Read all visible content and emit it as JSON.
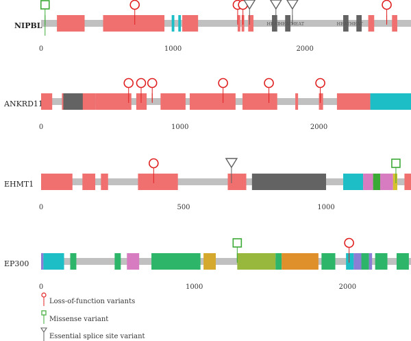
{
  "colors": {
    "backbone": "#c0c0c0",
    "lof": "#e02020",
    "missense": "#3aaa35",
    "splice": "#606060",
    "axis_text": "#333333"
  },
  "legend": [
    {
      "marker": "lof",
      "label": "Loss-of-function variants"
    },
    {
      "marker": "missense",
      "label": "Missense variant"
    },
    {
      "marker": "splice",
      "label": "Essential splice site variant"
    }
  ],
  "proteins": [
    {
      "name": "NIPBL",
      "name_bold": true,
      "length": 2804,
      "x_max": 2804,
      "ticks": [
        0,
        1000,
        2000
      ],
      "domains": [
        {
          "start": 120,
          "end": 330,
          "color": "#f07070"
        },
        {
          "start": 470,
          "end": 935,
          "color": "#f07070"
        },
        {
          "start": 990,
          "end": 1010,
          "color": "#1ebec6"
        },
        {
          "start": 1040,
          "end": 1060,
          "color": "#1ebec6"
        },
        {
          "start": 1070,
          "end": 1190,
          "color": "#f07070"
        },
        {
          "start": 1490,
          "end": 1510,
          "color": "#f07070"
        },
        {
          "start": 1520,
          "end": 1540,
          "color": "#f07070"
        },
        {
          "start": 1570,
          "end": 1610,
          "color": "#f07070"
        },
        {
          "start": 1750,
          "end": 1790,
          "color": "#636363"
        },
        {
          "start": 1850,
          "end": 1890,
          "color": "#636363"
        },
        {
          "start": 2290,
          "end": 2330,
          "color": "#636363"
        },
        {
          "start": 2390,
          "end": 2430,
          "color": "#636363"
        },
        {
          "start": 2480,
          "end": 2525,
          "color": "#f07070"
        },
        {
          "start": 2660,
          "end": 2700,
          "color": "#f07070"
        }
      ],
      "domain_labels": [
        {
          "pos": 1760,
          "text": "HEAT"
        },
        {
          "pos": 1850,
          "text": "HEAT"
        },
        {
          "pos": 1945,
          "text": "HEAT"
        },
        {
          "pos": 2290,
          "text": "HEAT"
        },
        {
          "pos": 2390,
          "text": "HEAT"
        }
      ],
      "variants": [
        {
          "pos": 30,
          "type": "missense",
          "height": "low"
        },
        {
          "pos": 710,
          "type": "lof",
          "height": "low"
        },
        {
          "pos": 1490,
          "type": "lof",
          "height": "low"
        },
        {
          "pos": 1530,
          "type": "lof",
          "height": "low"
        },
        {
          "pos": 1580,
          "type": "splice",
          "height": "low"
        },
        {
          "pos": 1780,
          "type": "splice",
          "height": "low"
        },
        {
          "pos": 1905,
          "type": "splice",
          "height": "low"
        },
        {
          "pos": 2620,
          "type": "lof",
          "height": "low"
        }
      ]
    },
    {
      "name": "ANKRD11",
      "name_bold": false,
      "length": 2663,
      "x_max": 2663,
      "ticks": [
        0,
        1000,
        2000
      ],
      "domains": [
        {
          "start": 0,
          "end": 80,
          "color": "#f07070"
        },
        {
          "start": 150,
          "end": 390,
          "color": "#f07070"
        },
        {
          "start": 160,
          "end": 300,
          "color": "#636363"
        },
        {
          "start": 390,
          "end": 650,
          "color": "#f07070"
        },
        {
          "start": 685,
          "end": 760,
          "color": "#f07070"
        },
        {
          "start": 860,
          "end": 1040,
          "color": "#f07070"
        },
        {
          "start": 1070,
          "end": 1400,
          "color": "#f07070"
        },
        {
          "start": 1450,
          "end": 1700,
          "color": "#f07070"
        },
        {
          "start": 1830,
          "end": 1850,
          "color": "#f07070"
        },
        {
          "start": 2000,
          "end": 2030,
          "color": "#f07070"
        },
        {
          "start": 2130,
          "end": 2370,
          "color": "#f07070"
        },
        {
          "start": 2370,
          "end": 2663,
          "color": "#1ebec6"
        }
      ],
      "variants": [
        {
          "pos": 630,
          "type": "lof",
          "height": "low"
        },
        {
          "pos": 720,
          "type": "lof",
          "height": "low"
        },
        {
          "pos": 800,
          "type": "lof",
          "height": "low"
        },
        {
          "pos": 1310,
          "type": "lof",
          "height": "low"
        },
        {
          "pos": 1640,
          "type": "lof",
          "height": "low"
        },
        {
          "pos": 2010,
          "type": "lof",
          "height": "low"
        }
      ]
    },
    {
      "name": "EHMT1",
      "name_bold": false,
      "length": 1298,
      "x_max": 1298,
      "ticks": [
        0,
        500,
        1000
      ],
      "domains": [
        {
          "start": 0,
          "end": 110,
          "color": "#f07070"
        },
        {
          "start": 145,
          "end": 190,
          "color": "#f07070"
        },
        {
          "start": 210,
          "end": 235,
          "color": "#f07070"
        },
        {
          "start": 340,
          "end": 480,
          "color": "#f07070"
        },
        {
          "start": 655,
          "end": 720,
          "color": "#f07070"
        },
        {
          "start": 740,
          "end": 1000,
          "color": "#636363"
        },
        {
          "start": 1060,
          "end": 1130,
          "color": "#1ebec6"
        },
        {
          "start": 1130,
          "end": 1165,
          "color": "#d77cc0"
        },
        {
          "start": 1165,
          "end": 1190,
          "color": "#3aaa35"
        },
        {
          "start": 1190,
          "end": 1235,
          "color": "#d77cc0"
        },
        {
          "start": 1235,
          "end": 1250,
          "color": "#d7c02e"
        },
        {
          "start": 1275,
          "end": 1298,
          "color": "#f07070"
        }
      ],
      "variants": [
        {
          "pos": 395,
          "type": "lof",
          "height": "low"
        },
        {
          "pos": 668,
          "type": "splice",
          "height": "low"
        },
        {
          "pos": 1245,
          "type": "missense",
          "height": "low"
        }
      ]
    },
    {
      "name": "EP300",
      "name_bold": false,
      "length": 2414,
      "x_max": 2414,
      "ticks": [
        0,
        1000,
        2000
      ],
      "domains": [
        {
          "start": 0,
          "end": 15,
          "color": "#8a7fd4"
        },
        {
          "start": 15,
          "end": 150,
          "color": "#1ebec6"
        },
        {
          "start": 190,
          "end": 230,
          "color": "#2db56a"
        },
        {
          "start": 480,
          "end": 520,
          "color": "#2db56a"
        },
        {
          "start": 560,
          "end": 640,
          "color": "#d77cc0"
        },
        {
          "start": 720,
          "end": 1040,
          "color": "#2db56a"
        },
        {
          "start": 1060,
          "end": 1140,
          "color": "#d4a92e"
        },
        {
          "start": 1280,
          "end": 1530,
          "color": "#97b83c"
        },
        {
          "start": 1530,
          "end": 1570,
          "color": "#2db56a"
        },
        {
          "start": 1570,
          "end": 1810,
          "color": "#e0902a"
        },
        {
          "start": 1830,
          "end": 1920,
          "color": "#2db56a"
        },
        {
          "start": 1990,
          "end": 2040,
          "color": "#1ebec6"
        },
        {
          "start": 2040,
          "end": 2090,
          "color": "#8a7fd4"
        },
        {
          "start": 2090,
          "end": 2140,
          "color": "#2db56a"
        },
        {
          "start": 2140,
          "end": 2160,
          "color": "#8a7fd4"
        },
        {
          "start": 2180,
          "end": 2260,
          "color": "#2db56a"
        },
        {
          "start": 2320,
          "end": 2400,
          "color": "#2db56a"
        }
      ],
      "variants": [
        {
          "pos": 1280,
          "type": "missense",
          "height": "low"
        },
        {
          "pos": 2010,
          "type": "lof",
          "height": "low"
        }
      ]
    }
  ]
}
